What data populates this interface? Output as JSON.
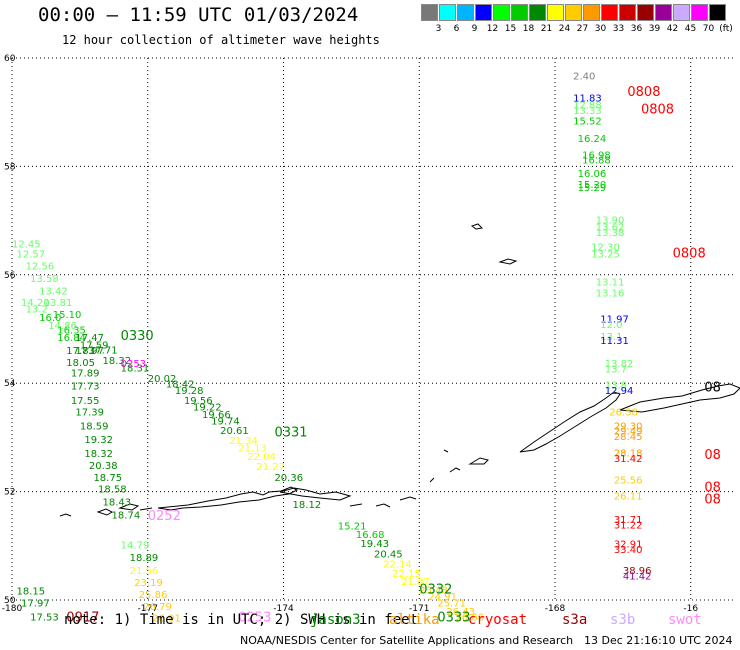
{
  "header": {
    "title": "00:00 – 11:59 UTC 01/03/2024",
    "subtitle": "12 hour collection of altimeter wave heights"
  },
  "legend": {
    "unit": "(ft)",
    "items": [
      {
        "label": "3",
        "color": "#787878"
      },
      {
        "label": "6",
        "color": "#00ffff"
      },
      {
        "label": "9",
        "color": "#00b4ff"
      },
      {
        "label": "12",
        "color": "#0000ff"
      },
      {
        "label": "15",
        "color": "#00ff00"
      },
      {
        "label": "18",
        "color": "#00cc00"
      },
      {
        "label": "21",
        "color": "#008800"
      },
      {
        "label": "24",
        "color": "#ffff00"
      },
      {
        "label": "27",
        "color": "#ffcc00"
      },
      {
        "label": "30",
        "color": "#ff9900"
      },
      {
        "label": "33",
        "color": "#ff0000"
      },
      {
        "label": "36",
        "color": "#cc0000"
      },
      {
        "label": "39",
        "color": "#990000"
      },
      {
        "label": "42",
        "color": "#990099"
      },
      {
        "label": "45",
        "color": "#ccaaff"
      },
      {
        "label": "70",
        "color": "#ff00ff"
      },
      {
        "label": "",
        "color": "#000000"
      }
    ]
  },
  "map": {
    "lon_range": [
      -180,
      -164
    ],
    "lat_range": [
      50,
      60
    ],
    "lon_ticks": [
      {
        "lon": -180,
        "label": "-180"
      },
      {
        "lon": -177,
        "label": "-177"
      },
      {
        "lon": -174,
        "label": "-174"
      },
      {
        "lon": -171,
        "label": "-171"
      },
      {
        "lon": -168,
        "label": "-168"
      },
      {
        "lon": -165,
        "label": "-16"
      }
    ],
    "lat_ticks": [
      {
        "lat": 60,
        "label": "60"
      },
      {
        "lat": 58,
        "label": "58"
      },
      {
        "lat": 56,
        "label": "56"
      },
      {
        "lat": 54,
        "label": "54"
      },
      {
        "lat": 52,
        "label": "52"
      },
      {
        "lat": 50,
        "label": "50"
      }
    ],
    "wave_labels": [
      {
        "lon": -167.6,
        "lat": 59.6,
        "text": "2.40",
        "color": "#808080"
      },
      {
        "lon": -167.6,
        "lat": 59.2,
        "text": "11.83",
        "color": "#0000ff"
      },
      {
        "lon": -167.6,
        "lat": 59.07,
        "text": "12.88",
        "color": "#66ff66"
      },
      {
        "lon": -167.6,
        "lat": 58.97,
        "text": "13.33",
        "color": "#66ff66"
      },
      {
        "lon": -167.6,
        "lat": 58.77,
        "text": "15.52",
        "color": "#00cc00"
      },
      {
        "lon": -167.5,
        "lat": 58.45,
        "text": "16.24",
        "color": "#00cc00"
      },
      {
        "lon": -167.4,
        "lat": 58.15,
        "text": "16.98",
        "color": "#00cc00"
      },
      {
        "lon": -167.4,
        "lat": 58.05,
        "text": "16.88",
        "color": "#00cc00"
      },
      {
        "lon": -167.5,
        "lat": 57.8,
        "text": "16.06",
        "color": "#00cc00"
      },
      {
        "lon": -167.5,
        "lat": 57.6,
        "text": "15.20",
        "color": "#00cc00"
      },
      {
        "lon": -167.5,
        "lat": 57.55,
        "text": "15.29",
        "color": "#00cc00"
      },
      {
        "lon": -167.1,
        "lat": 56.95,
        "text": "13.90",
        "color": "#66ff66"
      },
      {
        "lon": -167.1,
        "lat": 56.82,
        "text": "13.62",
        "color": "#66ff66"
      },
      {
        "lon": -167.1,
        "lat": 56.72,
        "text": "13.38",
        "color": "#66ff66"
      },
      {
        "lon": -167.2,
        "lat": 56.45,
        "text": "12.30",
        "color": "#66ff66"
      },
      {
        "lon": -167.2,
        "lat": 56.32,
        "text": "13.25",
        "color": "#66ff66"
      },
      {
        "lon": -167.1,
        "lat": 55.8,
        "text": "13.11",
        "color": "#66ff66"
      },
      {
        "lon": -167.1,
        "lat": 55.6,
        "text": "13.16",
        "color": "#66ff66"
      },
      {
        "lon": -167.0,
        "lat": 55.12,
        "text": "11.97",
        "color": "#0000ff"
      },
      {
        "lon": -167.0,
        "lat": 55.02,
        "text": "12.0",
        "color": "#66ff66"
      },
      {
        "lon": -167.0,
        "lat": 54.8,
        "text": "13.1",
        "color": "#66ff66"
      },
      {
        "lon": -167.0,
        "lat": 54.72,
        "text": "11.31",
        "color": "#0000ff"
      },
      {
        "lon": -166.9,
        "lat": 54.3,
        "text": "13.82",
        "color": "#66ff66"
      },
      {
        "lon": -166.9,
        "lat": 54.2,
        "text": "13.7",
        "color": "#66ff66"
      },
      {
        "lon": -166.9,
        "lat": 53.9,
        "text": "13.8",
        "color": "#66ff66"
      },
      {
        "lon": -166.9,
        "lat": 53.8,
        "text": "12.94",
        "color": "#0000ff"
      },
      {
        "lon": -166.8,
        "lat": 53.4,
        "text": "26.58",
        "color": "#ffcc00"
      },
      {
        "lon": -166.7,
        "lat": 53.15,
        "text": "29.30",
        "color": "#ff9900"
      },
      {
        "lon": -166.7,
        "lat": 53.05,
        "text": "29.49",
        "color": "#ff9900"
      },
      {
        "lon": -166.7,
        "lat": 52.95,
        "text": "28.45",
        "color": "#ff9900"
      },
      {
        "lon": -166.7,
        "lat": 52.65,
        "text": "28.18",
        "color": "#ff9900"
      },
      {
        "lon": -166.7,
        "lat": 52.55,
        "text": "31.42",
        "color": "#ff0000"
      },
      {
        "lon": -166.7,
        "lat": 52.15,
        "text": "25.56",
        "color": "#ffcc00"
      },
      {
        "lon": -166.7,
        "lat": 51.85,
        "text": "26.11",
        "color": "#ffcc00"
      },
      {
        "lon": -166.7,
        "lat": 51.42,
        "text": "31.71",
        "color": "#ff0000"
      },
      {
        "lon": -166.7,
        "lat": 51.32,
        "text": "31.22",
        "color": "#ff0000"
      },
      {
        "lon": -166.7,
        "lat": 50.97,
        "text": "32.91",
        "color": "#ff0000"
      },
      {
        "lon": -166.7,
        "lat": 50.87,
        "text": "33.40",
        "color": "#ff0000"
      },
      {
        "lon": -166.5,
        "lat": 50.48,
        "text": "38.96",
        "color": "#990000"
      },
      {
        "lon": -166.5,
        "lat": 50.38,
        "text": "41.42",
        "color": "#990099"
      },
      {
        "lon": -180.0,
        "lat": 56.5,
        "text": "12.45",
        "color": "#66ff66"
      },
      {
        "lon": -179.9,
        "lat": 56.32,
        "text": "12.57",
        "color": "#66ff66"
      },
      {
        "lon": -179.7,
        "lat": 56.1,
        "text": "12.56",
        "color": "#66ff66"
      },
      {
        "lon": -179.6,
        "lat": 55.87,
        "text": "13.58",
        "color": "#66ff66"
      },
      {
        "lon": -179.4,
        "lat": 55.64,
        "text": "13.42",
        "color": "#66ff66"
      },
      {
        "lon": -179.8,
        "lat": 55.42,
        "text": "14.20",
        "color": "#66ff66"
      },
      {
        "lon": -179.3,
        "lat": 55.42,
        "text": "13.81",
        "color": "#66ff66"
      },
      {
        "lon": -179.7,
        "lat": 55.3,
        "text": "13.2",
        "color": "#66ff66"
      },
      {
        "lon": -179.1,
        "lat": 55.2,
        "text": "15.10",
        "color": "#00cc00"
      },
      {
        "lon": -179.4,
        "lat": 55.15,
        "text": "16.0",
        "color": "#00cc00"
      },
      {
        "lon": -179.2,
        "lat": 55.0,
        "text": "14.86",
        "color": "#66ff66"
      },
      {
        "lon": -179.0,
        "lat": 54.92,
        "text": "16.35",
        "color": "#00cc00"
      },
      {
        "lon": -179.0,
        "lat": 54.78,
        "text": "16.84",
        "color": "#00cc00"
      },
      {
        "lon": -178.6,
        "lat": 54.78,
        "text": "17.47",
        "color": "#008800"
      },
      {
        "lon": -178.5,
        "lat": 54.64,
        "text": "17.59",
        "color": "#008800"
      },
      {
        "lon": -178.3,
        "lat": 54.55,
        "text": "17.71",
        "color": "#008800"
      },
      {
        "lon": -178.8,
        "lat": 54.54,
        "text": "17.83",
        "color": "#008800"
      },
      {
        "lon": -178.6,
        "lat": 54.54,
        "text": "17.97",
        "color": "#008800"
      },
      {
        "lon": -178.0,
        "lat": 54.35,
        "text": "18.32",
        "color": "#008800"
      },
      {
        "lon": -178.8,
        "lat": 54.32,
        "text": "18.05",
        "color": "#008800"
      },
      {
        "lon": -177.6,
        "lat": 54.3,
        "text": "0253",
        "color": "#ff00ff"
      },
      {
        "lon": -177.6,
        "lat": 54.22,
        "text": "18.31",
        "color": "#008800"
      },
      {
        "lon": -178.7,
        "lat": 54.12,
        "text": "17.89",
        "color": "#008800"
      },
      {
        "lon": -177.0,
        "lat": 54.02,
        "text": "20.02",
        "color": "#008800"
      },
      {
        "lon": -176.6,
        "lat": 53.92,
        "text": "18.42",
        "color": "#008800"
      },
      {
        "lon": -176.4,
        "lat": 53.8,
        "text": "19.28",
        "color": "#008800"
      },
      {
        "lon": -178.7,
        "lat": 53.88,
        "text": "17.73",
        "color": "#008800"
      },
      {
        "lon": -178.7,
        "lat": 53.62,
        "text": "17.55",
        "color": "#008800"
      },
      {
        "lon": -176.2,
        "lat": 53.62,
        "text": "19.56",
        "color": "#008800"
      },
      {
        "lon": -176.0,
        "lat": 53.5,
        "text": "19.22",
        "color": "#008800"
      },
      {
        "lon": -178.6,
        "lat": 53.4,
        "text": "17.39",
        "color": "#008800"
      },
      {
        "lon": -175.8,
        "lat": 53.36,
        "text": "19.66",
        "color": "#008800"
      },
      {
        "lon": -175.6,
        "lat": 53.24,
        "text": "19.74",
        "color": "#008800"
      },
      {
        "lon": -178.5,
        "lat": 53.15,
        "text": "18.59",
        "color": "#008800"
      },
      {
        "lon": -175.4,
        "lat": 53.06,
        "text": "20.61",
        "color": "#008800"
      },
      {
        "lon": -178.4,
        "lat": 52.9,
        "text": "19.32",
        "color": "#008800"
      },
      {
        "lon": -175.2,
        "lat": 52.88,
        "text": "21.34",
        "color": "#ffff00"
      },
      {
        "lon": -175.0,
        "lat": 52.74,
        "text": "21.13",
        "color": "#ffff00"
      },
      {
        "lon": -178.4,
        "lat": 52.64,
        "text": "18.32",
        "color": "#008800"
      },
      {
        "lon": -174.8,
        "lat": 52.58,
        "text": "22.04",
        "color": "#ffff00"
      },
      {
        "lon": -178.3,
        "lat": 52.42,
        "text": "20.38",
        "color": "#008800"
      },
      {
        "lon": -174.6,
        "lat": 52.4,
        "text": "21.27",
        "color": "#ffff00"
      },
      {
        "lon": -178.2,
        "lat": 52.2,
        "text": "18.75",
        "color": "#008800"
      },
      {
        "lon": -174.2,
        "lat": 52.2,
        "text": "20.36",
        "color": "#008800"
      },
      {
        "lon": -178.1,
        "lat": 51.98,
        "text": "18.58",
        "color": "#008800"
      },
      {
        "lon": -178.0,
        "lat": 51.74,
        "text": "18.43",
        "color": "#008800"
      },
      {
        "lon": -173.8,
        "lat": 51.7,
        "text": "18.12",
        "color": "#008800"
      },
      {
        "lon": -177.8,
        "lat": 51.5,
        "text": "18.74",
        "color": "#008800"
      },
      {
        "lon": -172.8,
        "lat": 51.3,
        "text": "15.21",
        "color": "#00cc00"
      },
      {
        "lon": -172.4,
        "lat": 51.14,
        "text": "16.68",
        "color": "#00cc00"
      },
      {
        "lon": -172.3,
        "lat": 50.98,
        "text": "19.43",
        "color": "#008800"
      },
      {
        "lon": -177.6,
        "lat": 50.95,
        "text": "14.79",
        "color": "#66ff66"
      },
      {
        "lon": -172.0,
        "lat": 50.78,
        "text": "20.45",
        "color": "#008800"
      },
      {
        "lon": -177.4,
        "lat": 50.72,
        "text": "18.89",
        "color": "#008800"
      },
      {
        "lon": -171.8,
        "lat": 50.6,
        "text": "22.14",
        "color": "#ffff00"
      },
      {
        "lon": -177.4,
        "lat": 50.48,
        "text": "21.56",
        "color": "#ffff00"
      },
      {
        "lon": -171.6,
        "lat": 50.42,
        "text": "22.15",
        "color": "#ffff00"
      },
      {
        "lon": -171.4,
        "lat": 50.28,
        "text": "21.07",
        "color": "#ffff00"
      },
      {
        "lon": -177.3,
        "lat": 50.26,
        "text": "23.19",
        "color": "#ffcc00"
      },
      {
        "lon": -171.0,
        "lat": 50.12,
        "text": "23.48",
        "color": "#ffcc00"
      },
      {
        "lon": -170.8,
        "lat": 50.0,
        "text": "24.91",
        "color": "#ffcc00"
      },
      {
        "lon": -177.2,
        "lat": 50.04,
        "text": "25.86",
        "color": "#ffcc00"
      },
      {
        "lon": -170.6,
        "lat": 49.88,
        "text": "25.71",
        "color": "#ffcc00"
      },
      {
        "lon": -177.1,
        "lat": 49.82,
        "text": "26.79",
        "color": "#ffcc00"
      },
      {
        "lon": -170.4,
        "lat": 49.72,
        "text": "26.43",
        "color": "#ffcc00"
      },
      {
        "lon": -170.2,
        "lat": 49.62,
        "text": "26.66",
        "color": "#ffcc00"
      },
      {
        "lon": -176.9,
        "lat": 49.6,
        "text": "26.91",
        "color": "#ffcc00"
      },
      {
        "lon": -179.9,
        "lat": 50.1,
        "text": "18.15",
        "color": "#008800"
      },
      {
        "lon": -179.8,
        "lat": 49.88,
        "text": "17.97",
        "color": "#008800"
      },
      {
        "lon": -179.6,
        "lat": 49.62,
        "text": "17.53",
        "color": "#008800"
      }
    ],
    "pass_labels": [
      {
        "lon": -166.4,
        "lat": 59.3,
        "text": "0808",
        "color": "#ff0000"
      },
      {
        "lon": -166.1,
        "lat": 58.98,
        "text": "0808",
        "color": "#ff0000"
      },
      {
        "lon": -165.4,
        "lat": 56.32,
        "text": "0808",
        "color": "#ff0000"
      },
      {
        "lon": -164.7,
        "lat": 52.6,
        "text": "08",
        "color": "#ff0000"
      },
      {
        "lon": -164.7,
        "lat": 52.0,
        "text": "08",
        "color": "#ff0000"
      },
      {
        "lon": -164.7,
        "lat": 51.78,
        "text": "08",
        "color": "#ff0000"
      },
      {
        "lon": -164.7,
        "lat": 53.85,
        "text": "08",
        "color": "#000000"
      },
      {
        "lon": -177.6,
        "lat": 54.8,
        "text": "0330",
        "color": "#008800"
      },
      {
        "lon": -174.2,
        "lat": 53.02,
        "text": "0331",
        "color": "#008800"
      },
      {
        "lon": -177.0,
        "lat": 51.48,
        "text": "0252",
        "color": "#ff88ff"
      },
      {
        "lon": -171.0,
        "lat": 50.12,
        "text": "0332",
        "color": "#008800"
      },
      {
        "lon": -170.6,
        "lat": 49.6,
        "text": "0333",
        "color": "#008800"
      },
      {
        "lon": -178.8,
        "lat": 49.6,
        "text": "0917",
        "color": "#990000"
      },
      {
        "lon": -175.0,
        "lat": 49.6,
        "text": "0253",
        "color": "#ff88ff"
      }
    ]
  },
  "footer": {
    "note": "note: 1) Time is in UTC; 2) SWH is in feet",
    "missions": [
      {
        "label": "jason3",
        "color": "#008800"
      },
      {
        "label": "altika",
        "color": "#ff9900"
      },
      {
        "label": "cryosat",
        "color": "#ff0000"
      },
      {
        "label": "s3a",
        "color": "#990000"
      },
      {
        "label": "s3b",
        "color": "#ccaaff"
      },
      {
        "label": "swot",
        "color": "#ff88ff"
      }
    ],
    "credit": "NOAA/NESDIS Center for Satellite Applications and Research",
    "generated": "13 Dec 21:16:10 UTC 2024"
  }
}
